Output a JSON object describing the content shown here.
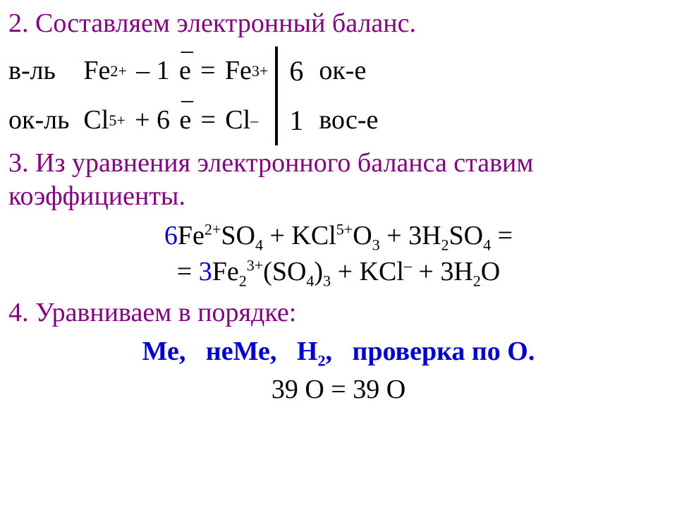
{
  "colors": {
    "heading": "#800080",
    "body": "#000000",
    "accent": "#0000cc",
    "background": "#ffffff"
  },
  "typography": {
    "family": "Times New Roman",
    "base_size_pt": 30,
    "heading_size_pt": 30,
    "equation_size_pt": 30
  },
  "step2": {
    "heading": "2. Составляем  электронный  баланс.",
    "rows": [
      {
        "role_left": "в-ль",
        "species_from": "Fe",
        "from_charge": "2+",
        "op": "– 1",
        "electron_symbol": "e",
        "species_to": "Fe",
        "to_charge": "3+",
        "coef": "6",
        "role_right": "ок-е"
      },
      {
        "role_left": "ок-ль",
        "species_from": "Cl",
        "from_charge": "5+",
        "op": "+ 6",
        "electron_symbol": "e",
        "species_to": "Cl",
        "to_charge": "–",
        "coef": "1",
        "role_right": "вос-е"
      }
    ]
  },
  "step3": {
    "heading": "3. Из уравнения электронного баланса ставим коэффициенты.",
    "equation_line1_html": "<span class='blue'>6</span>Fe<sup>2+</sup>SO<sub>4</sub> + KCl<sup>5+</sup>O<sub>3</sub> + 3H<sub>2</sub>SO<sub>4</sub> =",
    "equation_line2_html": "= <span class='blue'>3</span>Fe<sub>2</sub><sup>3+</sup>(SO<sub>4</sub>)<sub>3</sub> + KCl<sup>–</sup> + 3H<sub>2</sub>O"
  },
  "step4": {
    "heading": "4. Уравниваем  в  порядке:",
    "order_items": [
      "Ме,",
      "неМе,",
      "Н",
      "проверка по О."
    ],
    "order_h_sub": "2",
    "check": "39 O = 39 O"
  }
}
